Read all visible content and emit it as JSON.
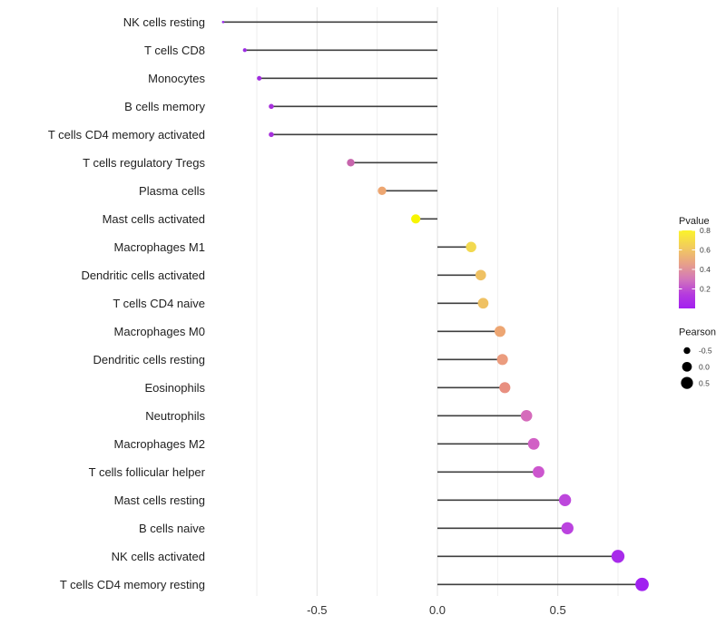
{
  "chart_data": {
    "type": "scatter",
    "subtype": "lollipop",
    "orientation": "horizontal",
    "title": "",
    "xlabel": "",
    "ylabel": "",
    "xlim": [
      -0.93,
      0.94
    ],
    "x_ticks": [
      -0.5,
      0.0,
      0.5
    ],
    "x_tick_labels": [
      "-0.5",
      "0.0",
      "0.5"
    ],
    "x_minor_ticks": [
      -0.75,
      -0.25,
      0.25,
      0.75
    ],
    "grid": {
      "vertical_only": true,
      "major_color": "#e3e3e3",
      "minor_color": "#ededed"
    },
    "background": "#ffffff",
    "stem_color": "#3f3f3f",
    "points": [
      {
        "label": "NK cells resting",
        "pearson": -0.89,
        "color": "#9729e8"
      },
      {
        "label": "T cells CD8",
        "pearson": -0.8,
        "color": "#9c2be4"
      },
      {
        "label": "Monocytes",
        "pearson": -0.74,
        "color": "#a12ce0"
      },
      {
        "label": "B cells memory",
        "pearson": -0.69,
        "color": "#a731dc"
      },
      {
        "label": "T cells CD4 memory activated",
        "pearson": -0.69,
        "color": "#a731dc"
      },
      {
        "label": "T cells regulatory  Tregs",
        "pearson": -0.36,
        "color": "#c765ac"
      },
      {
        "label": "Plasma cells",
        "pearson": -0.23,
        "color": "#eda671"
      },
      {
        "label": "Mast cells activated",
        "pearson": -0.09,
        "color": "#f7f502"
      },
      {
        "label": "Macrophages M1",
        "pearson": 0.14,
        "color": "#f2d950"
      },
      {
        "label": "Dendritic cells activated",
        "pearson": 0.18,
        "color": "#efc163"
      },
      {
        "label": "T cells CD4 naive",
        "pearson": 0.19,
        "color": "#efc163"
      },
      {
        "label": "Macrophages M0",
        "pearson": 0.26,
        "color": "#eda673"
      },
      {
        "label": "Dendritic cells resting",
        "pearson": 0.27,
        "color": "#eb9c7e"
      },
      {
        "label": "Eosinophils",
        "pearson": 0.28,
        "color": "#e88f80"
      },
      {
        "label": "Neutrophils",
        "pearson": 0.37,
        "color": "#d56bbb"
      },
      {
        "label": "Macrophages M2",
        "pearson": 0.4,
        "color": "#d160c5"
      },
      {
        "label": "T cells follicular helper",
        "pearson": 0.42,
        "color": "#cc56ce"
      },
      {
        "label": "Mast cells resting",
        "pearson": 0.53,
        "color": "#bd47dc"
      },
      {
        "label": "B cells naive",
        "pearson": 0.54,
        "color": "#bb43df"
      },
      {
        "label": "NK cells activated",
        "pearson": 0.75,
        "color": "#a82bea"
      },
      {
        "label": "T cells CD4 memory resting",
        "pearson": 0.85,
        "color": "#a021f0"
      }
    ],
    "legends": {
      "pvalue": {
        "title": "Pvalue",
        "range": [
          0,
          0.8
        ],
        "ticks": [
          0.8,
          0.6,
          0.4,
          0.2
        ],
        "tick_labels": [
          "0.8",
          "0.6",
          "0.4",
          "0.2"
        ],
        "gradient_top_to_bottom": [
          "#fbf32b",
          "#f2cb5e",
          "#e8a287",
          "#d378b9",
          "#b53bde",
          "#a31ff0"
        ]
      },
      "pearson": {
        "title": "Pearson",
        "entries": [
          {
            "label": "-0.5",
            "value": -0.5
          },
          {
            "label": "0.0",
            "value": 0.0
          },
          {
            "label": "0.5",
            "value": 0.5
          }
        ],
        "dot_color": "#000000"
      }
    },
    "text_colors": {
      "category_labels": "#1f1f1f",
      "axis_tick_labels": "#333333",
      "legend_titles": "#1a1a1a",
      "legend_labels": "#3c3c3c"
    }
  }
}
